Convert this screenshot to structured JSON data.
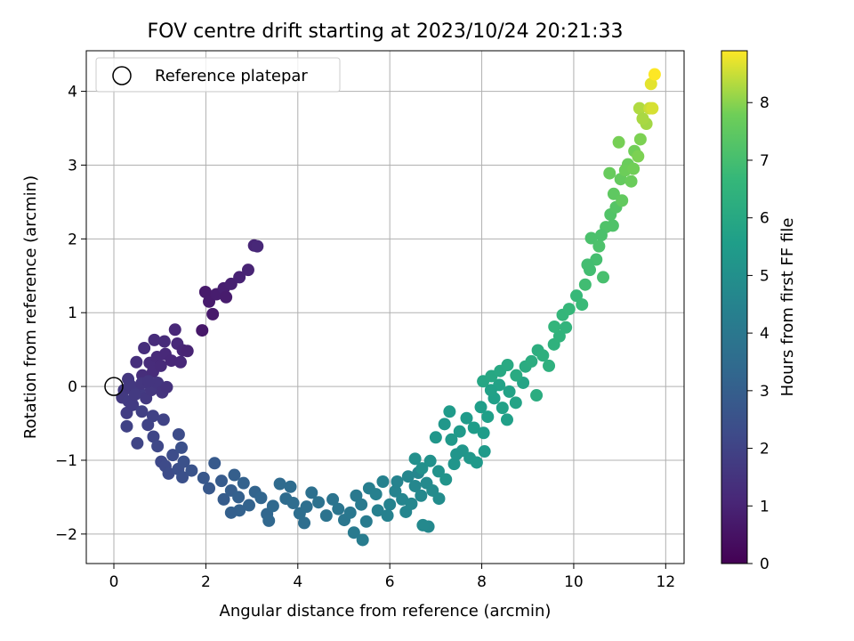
{
  "chart_data": {
    "type": "scatter",
    "title": "FOV centre drift starting at 2023/10/24 20:21:33",
    "xlabel": "Angular distance from reference (arcmin)",
    "ylabel": "Rotation from reference (arcmin)",
    "xlim": [
      -0.6,
      12.4
    ],
    "ylim": [
      -2.4,
      4.55
    ],
    "xticks": [
      "0",
      "2",
      "4",
      "6",
      "8",
      "10",
      "12"
    ],
    "yticks": [
      "−2",
      "−1",
      "0",
      "1",
      "2",
      "3",
      "4"
    ],
    "xtick_values": [
      0,
      2,
      4,
      6,
      8,
      10,
      12
    ],
    "ytick_values": [
      -2,
      -1,
      0,
      1,
      2,
      3,
      4
    ],
    "grid": true,
    "legend": {
      "position": "top-left",
      "entries": [
        {
          "label": "Reference platepar",
          "marker": "open-circle",
          "x": 0,
          "y": 0
        }
      ]
    },
    "colorbar": {
      "label": "Hours from first FF file",
      "colormap": "viridis",
      "range": [
        0,
        8.9
      ],
      "ticks": [
        "0",
        "1",
        "2",
        "3",
        "4",
        "5",
        "6",
        "7",
        "8"
      ],
      "tick_values": [
        0,
        1,
        2,
        3,
        4,
        5,
        6,
        7,
        8
      ]
    },
    "series": [
      {
        "points": [
          [
            1.99,
            1.28
          ],
          [
            2.07,
            1.15
          ],
          [
            2.23,
            1.25
          ],
          [
            2.39,
            1.33
          ],
          [
            2.55,
            1.39
          ],
          [
            2.73,
            1.48
          ],
          [
            2.92,
            1.58
          ],
          [
            3.05,
            1.91
          ],
          [
            3.12,
            1.9
          ],
          [
            2.44,
            1.21
          ],
          [
            2.15,
            0.98
          ],
          [
            1.92,
            0.76
          ],
          [
            1.33,
            0.77
          ],
          [
            1.38,
            0.58
          ],
          [
            1.1,
            0.61
          ],
          [
            0.88,
            0.63
          ],
          [
            0.66,
            0.52
          ],
          [
            0.49,
            0.33
          ],
          [
            0.62,
            0.15
          ],
          [
            0.78,
            0.32
          ],
          [
            0.94,
            0.4
          ],
          [
            1.12,
            0.44
          ],
          [
            1.25,
            0.35
          ],
          [
            1.5,
            0.49
          ],
          [
            0.85,
            0.2
          ],
          [
            1.02,
            0.28
          ],
          [
            1.45,
            0.33
          ],
          [
            1.6,
            0.48
          ],
          [
            0.31,
            0.1
          ],
          [
            0.22,
            -0.05
          ],
          [
            0.18,
            -0.15
          ],
          [
            0.32,
            -0.2
          ],
          [
            0.28,
            -0.36
          ],
          [
            0.41,
            -0.25
          ],
          [
            0.55,
            -0.07
          ],
          [
            0.7,
            -0.16
          ],
          [
            0.81,
            -0.05
          ],
          [
            0.95,
            0.05
          ],
          [
            1.05,
            -0.08
          ],
          [
            1.15,
            -0.01
          ],
          [
            0.35,
            0.02
          ],
          [
            0.6,
            0.04
          ],
          [
            0.46,
            -0.11
          ],
          [
            0.75,
            0.07
          ],
          [
            0.61,
            -0.34
          ],
          [
            0.85,
            -0.4
          ],
          [
            1.08,
            -0.45
          ],
          [
            0.74,
            -0.52
          ],
          [
            0.28,
            -0.54
          ],
          [
            0.51,
            -0.77
          ],
          [
            0.86,
            -0.68
          ],
          [
            0.95,
            -0.81
          ],
          [
            1.03,
            -1.02
          ],
          [
            1.12,
            -1.08
          ],
          [
            1.19,
            -1.18
          ],
          [
            1.28,
            -0.93
          ],
          [
            1.4,
            -1.12
          ],
          [
            1.47,
            -0.83
          ],
          [
            1.52,
            -1.02
          ],
          [
            1.69,
            -1.14
          ],
          [
            1.49,
            -1.23
          ],
          [
            1.41,
            -0.65
          ],
          [
            1.95,
            -1.24
          ],
          [
            2.07,
            -1.38
          ],
          [
            2.19,
            -1.04
          ],
          [
            2.34,
            -1.28
          ],
          [
            2.39,
            -1.53
          ],
          [
            2.55,
            -1.41
          ],
          [
            2.62,
            -1.2
          ],
          [
            2.71,
            -1.5
          ],
          [
            2.82,
            -1.31
          ],
          [
            2.94,
            -1.61
          ],
          [
            3.07,
            -1.43
          ],
          [
            2.73,
            -1.68
          ],
          [
            2.55,
            -1.71
          ],
          [
            3.2,
            -1.51
          ],
          [
            3.33,
            -1.73
          ],
          [
            3.37,
            -1.82
          ],
          [
            3.46,
            -1.62
          ],
          [
            3.61,
            -1.32
          ],
          [
            3.74,
            -1.52
          ],
          [
            3.9,
            -1.58
          ],
          [
            4.04,
            -1.72
          ],
          [
            4.19,
            -1.63
          ],
          [
            4.3,
            -1.44
          ],
          [
            4.45,
            -1.57
          ],
          [
            4.62,
            -1.75
          ],
          [
            4.76,
            -1.53
          ],
          [
            4.88,
            -1.66
          ],
          [
            5.01,
            -1.81
          ],
          [
            5.14,
            -1.71
          ],
          [
            5.27,
            -1.48
          ],
          [
            5.38,
            -1.6
          ],
          [
            5.49,
            -1.83
          ],
          [
            4.14,
            -1.85
          ],
          [
            3.84,
            -1.36
          ],
          [
            5.22,
            -1.98
          ],
          [
            5.41,
            -2.08
          ],
          [
            5.55,
            -1.38
          ],
          [
            5.7,
            -1.46
          ],
          [
            5.85,
            -1.29
          ],
          [
            6.0,
            -1.6
          ],
          [
            6.12,
            -1.42
          ],
          [
            6.27,
            -1.53
          ],
          [
            6.4,
            -1.22
          ],
          [
            6.55,
            -1.35
          ],
          [
            6.68,
            -1.48
          ],
          [
            6.8,
            -1.31
          ],
          [
            6.93,
            -1.41
          ],
          [
            7.07,
            -1.52
          ],
          [
            6.62,
            -1.17
          ],
          [
            6.84,
            -1.9
          ],
          [
            6.72,
            -1.88
          ],
          [
            5.74,
            -1.68
          ],
          [
            5.95,
            -1.75
          ],
          [
            6.35,
            -1.7
          ],
          [
            6.16,
            -1.29
          ],
          [
            6.47,
            -1.59
          ],
          [
            6.7,
            -1.11
          ],
          [
            6.88,
            -1.01
          ],
          [
            7.06,
            -1.15
          ],
          [
            7.22,
            -1.26
          ],
          [
            7.4,
            -1.05
          ],
          [
            7.58,
            -0.87
          ],
          [
            7.74,
            -0.97
          ],
          [
            7.89,
            -1.03
          ],
          [
            8.06,
            -0.88
          ],
          [
            7.0,
            -0.69
          ],
          [
            7.19,
            -0.51
          ],
          [
            7.34,
            -0.72
          ],
          [
            7.52,
            -0.61
          ],
          [
            7.67,
            -0.43
          ],
          [
            7.83,
            -0.56
          ],
          [
            7.98,
            -0.28
          ],
          [
            8.13,
            -0.41
          ],
          [
            8.27,
            -0.16
          ],
          [
            8.45,
            -0.29
          ],
          [
            8.6,
            -0.07
          ],
          [
            8.74,
            -0.22
          ],
          [
            8.9,
            0.05
          ],
          [
            7.45,
            -0.92
          ],
          [
            6.55,
            -0.98
          ],
          [
            7.3,
            -0.34
          ],
          [
            8.38,
            0.02
          ],
          [
            8.04,
            -0.63
          ],
          [
            8.55,
            -0.45
          ],
          [
            8.2,
            -0.05
          ],
          [
            8.03,
            0.07
          ],
          [
            8.21,
            0.14
          ],
          [
            8.4,
            0.21
          ],
          [
            8.56,
            0.29
          ],
          [
            8.75,
            0.15
          ],
          [
            8.95,
            0.27
          ],
          [
            9.08,
            0.34
          ],
          [
            9.22,
            0.49
          ],
          [
            9.33,
            0.42
          ],
          [
            9.46,
            0.28
          ],
          [
            9.57,
            0.57
          ],
          [
            9.69,
            0.68
          ],
          [
            9.83,
            0.8
          ],
          [
            9.58,
            0.81
          ],
          [
            9.76,
            0.97
          ],
          [
            9.9,
            1.05
          ],
          [
            10.06,
            1.23
          ],
          [
            10.18,
            1.11
          ],
          [
            9.19,
            -0.12
          ],
          [
            10.25,
            1.38
          ],
          [
            10.35,
            1.58
          ],
          [
            10.49,
            1.72
          ],
          [
            10.64,
            1.48
          ],
          [
            10.38,
            2.01
          ],
          [
            10.55,
            1.9
          ],
          [
            10.7,
            2.16
          ],
          [
            10.8,
            2.33
          ],
          [
            10.92,
            2.43
          ],
          [
            10.3,
            1.65
          ],
          [
            10.6,
            2.05
          ],
          [
            10.85,
            2.18
          ],
          [
            10.87,
            2.61
          ],
          [
            11.02,
            2.81
          ],
          [
            11.18,
            3.01
          ],
          [
            11.32,
            3.19
          ],
          [
            11.45,
            3.35
          ],
          [
            10.98,
            3.31
          ],
          [
            11.12,
            2.93
          ],
          [
            11.25,
            2.78
          ],
          [
            11.4,
            3.12
          ],
          [
            11.05,
            2.52
          ],
          [
            10.78,
            2.89
          ],
          [
            11.3,
            2.95
          ],
          [
            11.43,
            3.77
          ],
          [
            11.65,
            3.77
          ],
          [
            11.71,
            3.77
          ],
          [
            11.68,
            4.1
          ],
          [
            11.76,
            4.23
          ],
          [
            11.58,
            3.56
          ],
          [
            11.5,
            3.63
          ]
        ],
        "hours": [
          0.7,
          0.75,
          0.8,
          0.85,
          0.9,
          0.95,
          1.0,
          1.05,
          1.1,
          0.78,
          0.72,
          0.65,
          1.1,
          1.15,
          1.2,
          1.25,
          1.3,
          1.35,
          1.3,
          1.25,
          1.2,
          1.15,
          1.1,
          1.05,
          1.25,
          1.2,
          1.1,
          1.0,
          1.6,
          1.65,
          1.7,
          1.75,
          1.8,
          1.75,
          1.7,
          1.65,
          1.6,
          1.55,
          1.5,
          1.45,
          1.62,
          1.58,
          1.7,
          1.55,
          1.9,
          1.95,
          2.0,
          2.0,
          1.95,
          2.05,
          2.1,
          2.15,
          2.2,
          2.25,
          2.3,
          2.35,
          2.4,
          2.45,
          2.5,
          2.55,
          2.45,
          2.3,
          2.7,
          2.75,
          2.8,
          2.85,
          2.9,
          2.95,
          3.0,
          3.05,
          3.1,
          3.15,
          3.2,
          3.1,
          3.05,
          3.25,
          3.3,
          3.35,
          3.4,
          3.45,
          3.5,
          3.55,
          3.6,
          3.65,
          3.7,
          3.75,
          3.8,
          3.85,
          3.9,
          3.95,
          4.0,
          4.05,
          4.1,
          4.15,
          3.6,
          3.5,
          4.1,
          4.2,
          4.3,
          4.35,
          4.4,
          4.45,
          4.5,
          4.55,
          4.6,
          4.65,
          4.7,
          4.75,
          4.8,
          4.85,
          4.62,
          4.7,
          4.72,
          4.35,
          4.4,
          4.55,
          4.5,
          4.6,
          5.0,
          5.05,
          5.1,
          5.15,
          5.2,
          5.25,
          5.3,
          5.35,
          5.4,
          5.25,
          5.3,
          5.35,
          5.4,
          5.45,
          5.5,
          5.55,
          5.6,
          5.65,
          5.7,
          5.75,
          5.8,
          5.85,
          5.2,
          5.0,
          5.45,
          5.75,
          5.5,
          5.65,
          5.7,
          5.9,
          5.95,
          6.0,
          6.05,
          6.1,
          6.15,
          6.2,
          6.25,
          6.3,
          6.35,
          6.4,
          6.45,
          6.5,
          6.55,
          6.6,
          6.65,
          6.7,
          6.75,
          6.2,
          6.9,
          6.95,
          7.0,
          7.05,
          7.1,
          7.15,
          7.2,
          7.25,
          7.3,
          6.95,
          7.1,
          7.2,
          7.5,
          7.6,
          7.7,
          7.8,
          7.9,
          7.85,
          7.75,
          7.7,
          7.9,
          7.55,
          7.65,
          7.8,
          8.3,
          8.5,
          8.6,
          8.7,
          8.9,
          8.2,
          8.25
        ]
      }
    ]
  }
}
